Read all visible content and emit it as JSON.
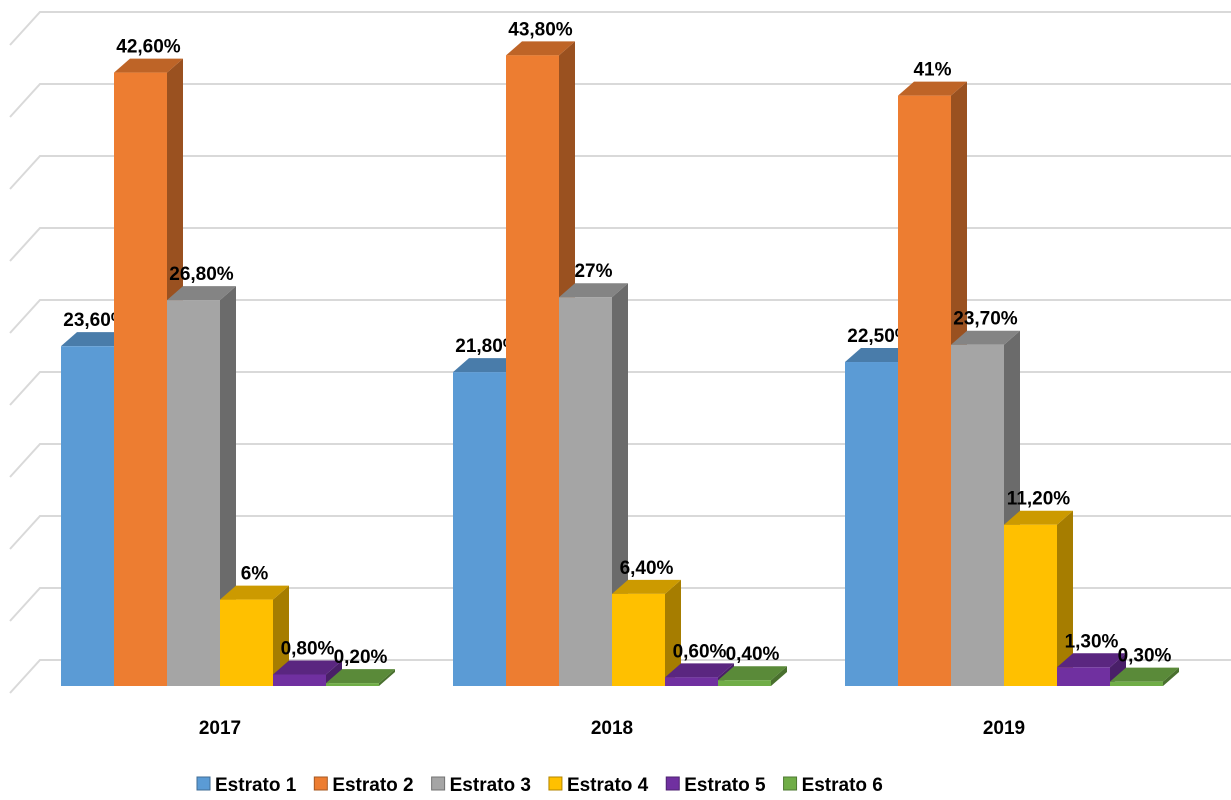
{
  "chart_data": {
    "type": "bar3d",
    "categories": [
      "2017",
      "2018",
      "2019"
    ],
    "series": [
      {
        "name": "Estrato 1",
        "color": "#5b9bd5",
        "values": [
          23.6,
          21.8,
          22.5
        ],
        "value_labels": [
          "23,60%",
          "21,80%",
          "22,50%"
        ]
      },
      {
        "name": "Estrato 2",
        "color": "#ed7d31",
        "values": [
          42.6,
          43.8,
          41
        ],
        "value_labels": [
          "42,60%",
          "43,80%",
          "41%"
        ]
      },
      {
        "name": "Estrato 3",
        "color": "#a5a5a5",
        "values": [
          26.8,
          27,
          23.7
        ],
        "value_labels": [
          "26,80%",
          "27%",
          "23,70%"
        ]
      },
      {
        "name": "Estrato 4",
        "color": "#ffc000",
        "values": [
          6,
          6.4,
          11.2
        ],
        "value_labels": [
          "6%",
          "6,40%",
          "11,20%"
        ]
      },
      {
        "name": "Estrato 5",
        "color": "#7030a0",
        "values": [
          0.8,
          0.6,
          1.3
        ],
        "value_labels": [
          "0,80%",
          "0,60%",
          "1,30%"
        ]
      },
      {
        "name": "Estrato 6",
        "color": "#70ad47",
        "values": [
          0.2,
          0.4,
          0.3
        ],
        "value_labels": [
          "0,20%",
          "0,40%",
          "0,30%"
        ]
      }
    ],
    "ylim": [
      0,
      45
    ],
    "yticks": [
      0,
      5,
      10,
      15,
      20,
      25,
      30,
      35,
      40,
      45
    ],
    "grid": true,
    "legend": "bottom"
  }
}
